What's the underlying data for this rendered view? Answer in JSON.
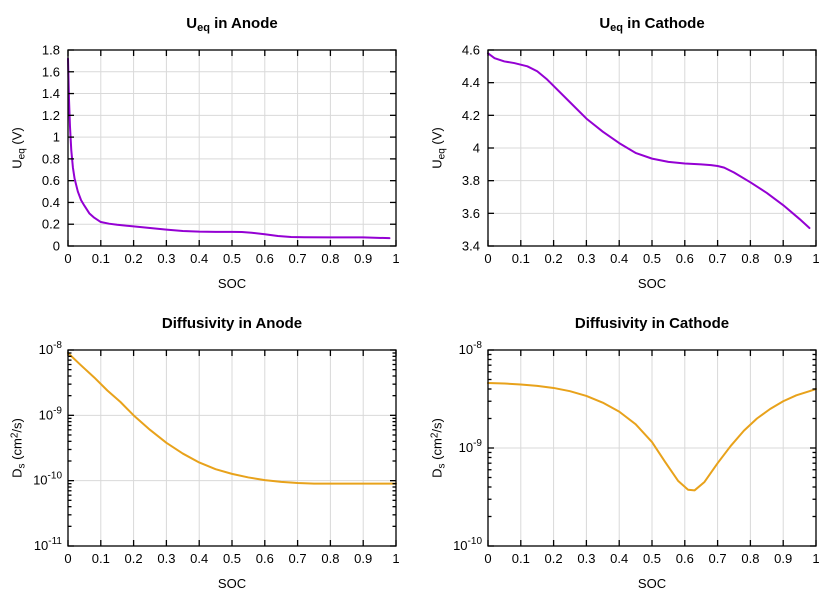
{
  "figure": {
    "background": "#ffffff",
    "rows": 2,
    "cols": 2,
    "grid_on": true
  },
  "colors": {
    "purple_line": "#9400d3",
    "orange_line": "#e8a21b",
    "grid_line": "#d9d9d9",
    "axis_line": "#000000",
    "text": "#000000"
  },
  "chart_data": [
    {
      "id": "ueq-anode",
      "type": "line",
      "title": "U_eq in Anode",
      "title_parts": [
        {
          "t": "U",
          "s": "n"
        },
        {
          "t": "eq",
          "s": "sub"
        },
        {
          "t": " in Anode",
          "s": "n"
        }
      ],
      "xlabel": "SOC",
      "ylabel": "U_eq (V)",
      "ylabel_parts": [
        {
          "t": "U",
          "s": "n"
        },
        {
          "t": "eq",
          "s": "sub"
        },
        {
          "t": " (V)",
          "s": "n"
        }
      ],
      "color": "#9400d3",
      "grid": true,
      "legend": null,
      "yscale": "linear",
      "xlim": [
        0,
        1
      ],
      "ylim": [
        0,
        1.8
      ],
      "x_tick_labels": [
        "0",
        "0.1",
        "0.2",
        "0.3",
        "0.4",
        "0.5",
        "0.6",
        "0.7",
        "0.8",
        "0.9",
        "1"
      ],
      "x_tick_values": [
        0,
        0.1,
        0.2,
        0.3,
        0.4,
        0.5,
        0.6,
        0.7,
        0.8,
        0.9,
        1
      ],
      "y_tick_labels": [
        "0",
        "0.2",
        "0.4",
        "0.6",
        "0.8",
        "1",
        "1.2",
        "1.4",
        "1.6",
        "1.8"
      ],
      "y_tick_values": [
        0,
        0.2,
        0.4,
        0.6,
        0.8,
        1,
        1.2,
        1.4,
        1.6,
        1.8
      ],
      "x": [
        0,
        0.003,
        0.006,
        0.01,
        0.015,
        0.02,
        0.03,
        0.04,
        0.05,
        0.065,
        0.08,
        0.1,
        0.125,
        0.15,
        0.2,
        0.25,
        0.3,
        0.35,
        0.4,
        0.45,
        0.5,
        0.53,
        0.56,
        0.6,
        0.64,
        0.68,
        0.72,
        0.8,
        0.9,
        0.98
      ],
      "y": [
        1.72,
        1.35,
        1.1,
        0.88,
        0.72,
        0.62,
        0.5,
        0.42,
        0.37,
        0.3,
        0.26,
        0.22,
        0.205,
        0.195,
        0.18,
        0.165,
        0.15,
        0.138,
        0.132,
        0.13,
        0.13,
        0.128,
        0.122,
        0.108,
        0.092,
        0.083,
        0.08,
        0.079,
        0.079,
        0.072
      ]
    },
    {
      "id": "ueq-cathode",
      "type": "line",
      "title": "U_eq in Cathode",
      "title_parts": [
        {
          "t": "U",
          "s": "n"
        },
        {
          "t": "eq",
          "s": "sub"
        },
        {
          "t": " in Cathode",
          "s": "n"
        }
      ],
      "xlabel": "SOC",
      "ylabel": "U_eq (V)",
      "ylabel_parts": [
        {
          "t": "U",
          "s": "n"
        },
        {
          "t": "eq",
          "s": "sub"
        },
        {
          "t": " (V)",
          "s": "n"
        }
      ],
      "color": "#9400d3",
      "grid": true,
      "legend": null,
      "yscale": "linear",
      "xlim": [
        0,
        1
      ],
      "ylim": [
        3.4,
        4.6
      ],
      "x_tick_labels": [
        "0",
        "0.1",
        "0.2",
        "0.3",
        "0.4",
        "0.5",
        "0.6",
        "0.7",
        "0.8",
        "0.9",
        "1"
      ],
      "x_tick_values": [
        0,
        0.1,
        0.2,
        0.3,
        0.4,
        0.5,
        0.6,
        0.7,
        0.8,
        0.9,
        1
      ],
      "y_tick_labels": [
        "3.4",
        "3.6",
        "3.8",
        "4",
        "4.2",
        "4.4",
        "4.6"
      ],
      "y_tick_values": [
        3.4,
        3.6,
        3.8,
        4,
        4.2,
        4.4,
        4.6
      ],
      "x": [
        0,
        0.02,
        0.05,
        0.08,
        0.1,
        0.12,
        0.15,
        0.18,
        0.2,
        0.25,
        0.3,
        0.35,
        0.4,
        0.45,
        0.5,
        0.55,
        0.6,
        0.65,
        0.68,
        0.7,
        0.72,
        0.75,
        0.8,
        0.85,
        0.9,
        0.95,
        0.98
      ],
      "y": [
        4.58,
        4.55,
        4.53,
        4.52,
        4.51,
        4.5,
        4.47,
        4.42,
        4.38,
        4.28,
        4.18,
        4.1,
        4.03,
        3.97,
        3.935,
        3.915,
        3.905,
        3.9,
        3.895,
        3.89,
        3.88,
        3.85,
        3.79,
        3.725,
        3.65,
        3.565,
        3.51
      ]
    },
    {
      "id": "diff-anode",
      "type": "line",
      "title": "Diffusivity in Anode",
      "title_parts": [
        {
          "t": "Diffusivity in Anode",
          "s": "n"
        }
      ],
      "xlabel": "SOC",
      "ylabel": "D_s (cm^2/s)",
      "ylabel_parts": [
        {
          "t": "D",
          "s": "n"
        },
        {
          "t": "s",
          "s": "sub"
        },
        {
          "t": " (cm",
          "s": "n"
        },
        {
          "t": "2",
          "s": "sup"
        },
        {
          "t": "/s)",
          "s": "n"
        }
      ],
      "color": "#e8a21b",
      "grid": true,
      "legend": null,
      "yscale": "log",
      "xlim": [
        0,
        1
      ],
      "ylim": [
        1e-11,
        1e-08
      ],
      "x_tick_labels": [
        "0",
        "0.1",
        "0.2",
        "0.3",
        "0.4",
        "0.5",
        "0.6",
        "0.7",
        "0.8",
        "0.9",
        "1"
      ],
      "x_tick_values": [
        0,
        0.1,
        0.2,
        0.3,
        0.4,
        0.5,
        0.6,
        0.7,
        0.8,
        0.9,
        1
      ],
      "y_tick_exponents": [
        -8,
        -9,
        -10,
        -11
      ],
      "y_tick_base": "10",
      "x": [
        0,
        0.04,
        0.08,
        0.12,
        0.16,
        0.2,
        0.25,
        0.3,
        0.35,
        0.4,
        0.45,
        0.5,
        0.55,
        0.6,
        0.65,
        0.7,
        0.75,
        0.8,
        0.9,
        1.0
      ],
      "y": [
        9e-09,
        5.8e-09,
        3.8e-09,
        2.4e-09,
        1.6e-09,
        1e-09,
        6e-10,
        3.8e-10,
        2.6e-10,
        1.9e-10,
        1.5e-10,
        1.27e-10,
        1.12e-10,
        1.02e-10,
        9.6e-11,
        9.2e-11,
        9e-11,
        9e-11,
        9e-11,
        9e-11
      ]
    },
    {
      "id": "diff-cathode",
      "type": "line",
      "title": "Diffusivity in Cathode",
      "title_parts": [
        {
          "t": "Diffusivity in Cathode",
          "s": "n"
        }
      ],
      "xlabel": "SOC",
      "ylabel": "D_s (cm^2/s)",
      "ylabel_parts": [
        {
          "t": "D",
          "s": "n"
        },
        {
          "t": "s",
          "s": "sub"
        },
        {
          "t": " (cm",
          "s": "n"
        },
        {
          "t": "2",
          "s": "sup"
        },
        {
          "t": "/s)",
          "s": "n"
        }
      ],
      "color": "#e8a21b",
      "grid": true,
      "legend": null,
      "yscale": "log",
      "xlim": [
        0,
        1
      ],
      "ylim": [
        1e-10,
        1e-08
      ],
      "x_tick_labels": [
        "0",
        "0.1",
        "0.2",
        "0.3",
        "0.4",
        "0.5",
        "0.6",
        "0.7",
        "0.8",
        "0.9",
        "1"
      ],
      "x_tick_values": [
        0,
        0.1,
        0.2,
        0.3,
        0.4,
        0.5,
        0.6,
        0.7,
        0.8,
        0.9,
        1
      ],
      "y_tick_exponents": [
        -8,
        -9,
        -10
      ],
      "y_tick_base": "10",
      "x": [
        0,
        0.05,
        0.1,
        0.15,
        0.2,
        0.25,
        0.3,
        0.35,
        0.4,
        0.45,
        0.5,
        0.54,
        0.58,
        0.61,
        0.63,
        0.66,
        0.7,
        0.74,
        0.78,
        0.82,
        0.86,
        0.9,
        0.94,
        0.98,
        1.0
      ],
      "y": [
        4.6e-09,
        4.55e-09,
        4.45e-09,
        4.3e-09,
        4.1e-09,
        3.8e-09,
        3.4e-09,
        2.9e-09,
        2.35e-09,
        1.75e-09,
        1.15e-09,
        7.2e-10,
        4.6e-10,
        3.75e-10,
        3.7e-10,
        4.5e-10,
        7e-10,
        1.05e-09,
        1.5e-09,
        2e-09,
        2.5e-09,
        3e-09,
        3.45e-09,
        3.8e-09,
        4e-09
      ]
    }
  ]
}
